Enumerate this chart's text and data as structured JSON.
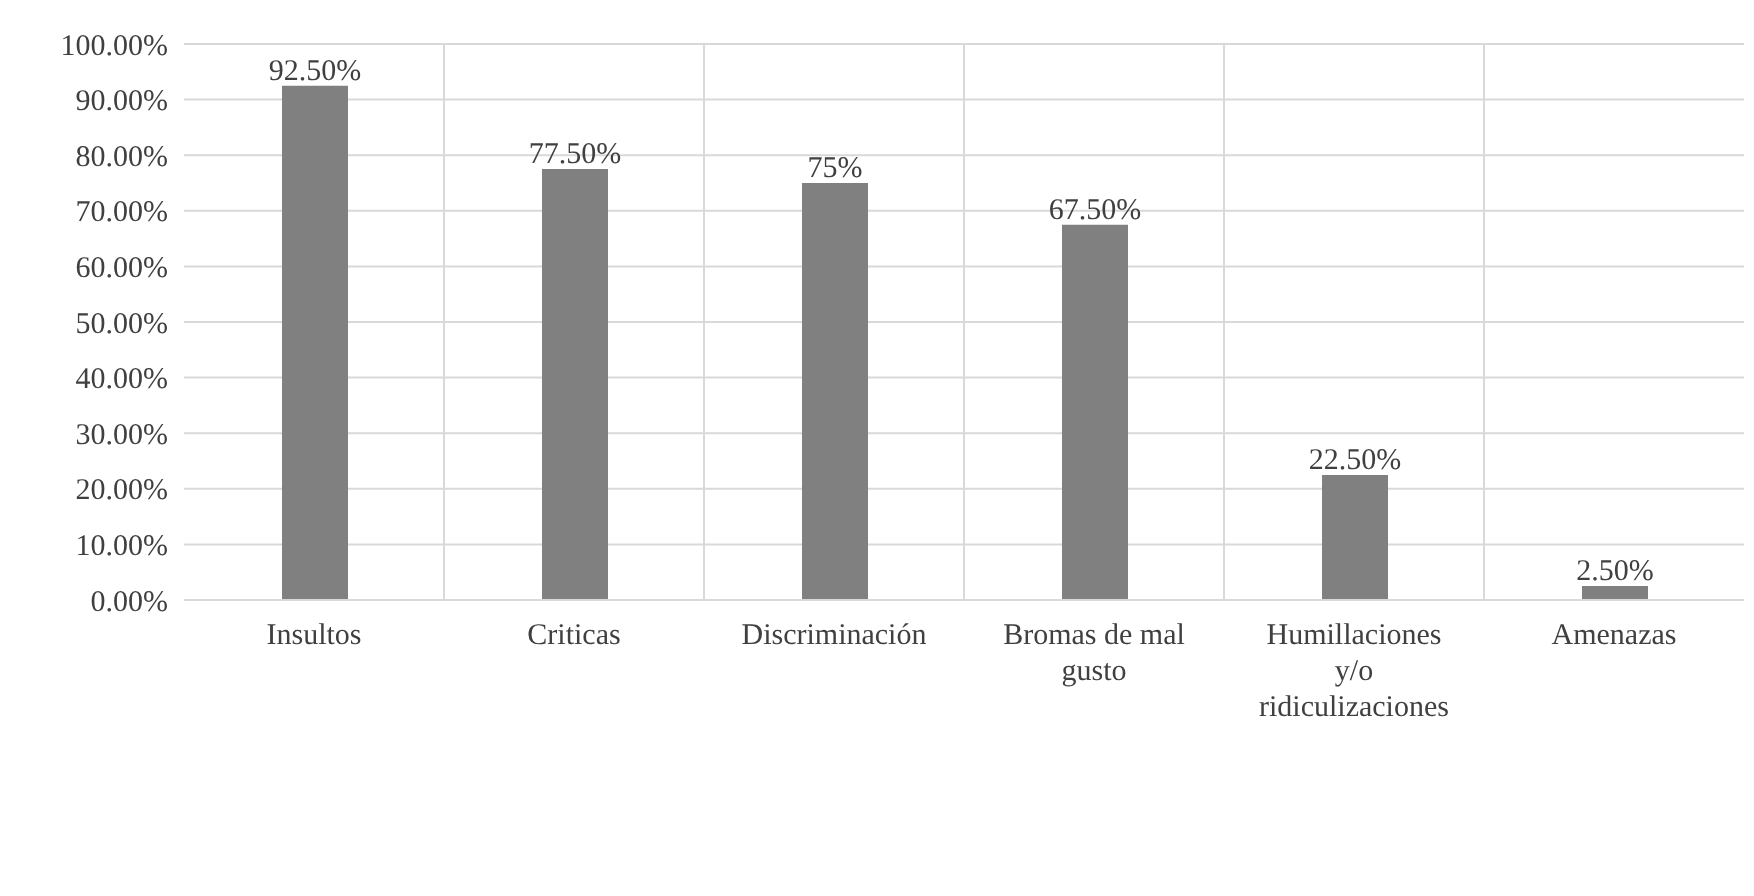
{
  "chart_data": {
    "type": "bar",
    "categories": [
      "Insultos",
      "Criticas",
      "Discriminación",
      "Bromas de mal gusto",
      "Humillaciones y/o ridiculizaciones",
      "Amenazas"
    ],
    "values": [
      92.5,
      77.5,
      75,
      67.5,
      22.5,
      2.5
    ],
    "value_labels": [
      "92.50%",
      "77.50%",
      "75%",
      "67.50%",
      "22.50%",
      "2.50%"
    ],
    "color": "#808080",
    "ylim": [
      0,
      100
    ],
    "yticks": [
      {
        "value": 0,
        "label": "0.00%"
      },
      {
        "value": 10,
        "label": "10.00%"
      },
      {
        "value": 20,
        "label": "20.00%"
      },
      {
        "value": 30,
        "label": "30.00%"
      },
      {
        "value": 40,
        "label": "40.00%"
      },
      {
        "value": 50,
        "label": "50.00%"
      },
      {
        "value": 60,
        "label": "60.00%"
      },
      {
        "value": 70,
        "label": "70.00%"
      },
      {
        "value": 80,
        "label": "80.00%"
      },
      {
        "value": 90,
        "label": "90.00%"
      },
      {
        "value": 100,
        "label": "100.00%"
      }
    ],
    "grid": true
  }
}
